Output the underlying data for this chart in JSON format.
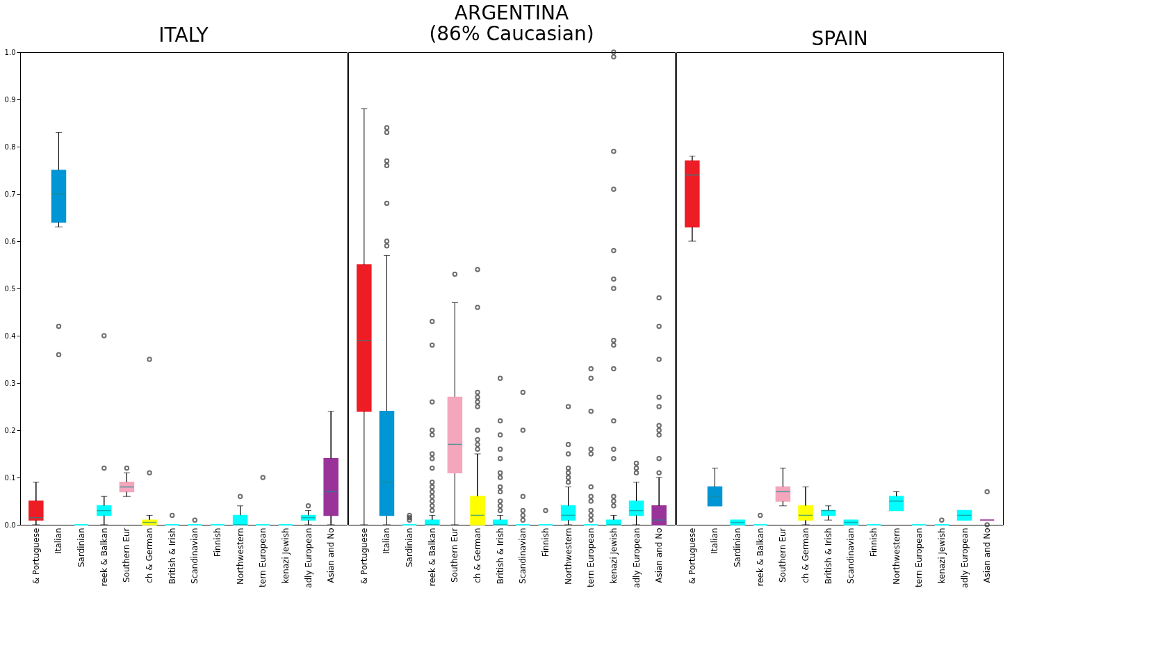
{
  "chart_data": [
    {
      "type": "box",
      "title": "ITALY",
      "categories": [
        "& Portuguese",
        "Italian",
        "Sardinian",
        "reek & Balkan",
        "Southern Eur",
        "ch & German",
        "British & Irish",
        "Scandinavian",
        "Finnish",
        "Northwestern",
        "tern European",
        "kenazi Jewish",
        "adly European",
        "Asian and No"
      ],
      "colors": [
        "#ee1c25",
        "#0096d6",
        "#00ffff",
        "#00ffff",
        "#f4a6bd",
        "#ffff00",
        "#00ffff",
        "#00ffff",
        "#00ffff",
        "#00ffff",
        "#00ffff",
        "#00ffff",
        "#00ffff",
        "#993399"
      ],
      "boxes": [
        {
          "low": 0,
          "q1": 0.01,
          "median": 0.015,
          "q3": 0.05,
          "high": 0.09
        },
        {
          "low": 0.63,
          "q1": 0.64,
          "median": 0.7,
          "q3": 0.75,
          "high": 0.83,
          "outliers": [
            0.42,
            0.36
          ]
        },
        {
          "low": 0,
          "q1": 0,
          "median": 0,
          "q3": 0,
          "high": 0
        },
        {
          "low": 0,
          "q1": 0.02,
          "median": 0.03,
          "q3": 0.04,
          "high": 0.06,
          "outliers": [
            0.12,
            0.4
          ]
        },
        {
          "low": 0.06,
          "q1": 0.07,
          "median": 0.08,
          "q3": 0.09,
          "high": 0.11,
          "outliers": [
            0.12
          ]
        },
        {
          "low": 0,
          "q1": 0,
          "median": 0.005,
          "q3": 0.01,
          "high": 0.02,
          "outliers": [
            0.11,
            0.35
          ]
        },
        {
          "low": 0,
          "q1": 0,
          "median": 0,
          "q3": 0,
          "high": 0,
          "outliers": [
            0.02
          ]
        },
        {
          "low": 0,
          "q1": 0,
          "median": 0,
          "q3": 0,
          "high": 0,
          "outliers": [
            0.01
          ]
        },
        {
          "low": 0,
          "q1": 0,
          "median": 0,
          "q3": 0,
          "high": 0
        },
        {
          "low": 0,
          "q1": 0,
          "median": 0,
          "q3": 0.02,
          "high": 0.04,
          "outliers": [
            0.06
          ]
        },
        {
          "low": 0,
          "q1": 0,
          "median": 0,
          "q3": 0,
          "high": 0,
          "outliers": [
            0.1
          ]
        },
        {
          "low": 0,
          "q1": 0,
          "median": 0,
          "q3": 0,
          "high": 0
        },
        {
          "low": 0,
          "q1": 0.01,
          "median": 0.015,
          "q3": 0.02,
          "high": 0.03,
          "outliers": [
            0.04
          ]
        },
        {
          "low": 0,
          "q1": 0.02,
          "median": 0.07,
          "q3": 0.14,
          "high": 0.24
        }
      ],
      "ylim": [
        0,
        1
      ],
      "yticks": [
        {
          "value": 0,
          "label": "0.0"
        },
        0.1,
        0.2,
        0.3,
        0.4,
        0.5,
        0.6,
        0.7,
        0.8,
        0.9,
        {
          "value": 1,
          "label": "1.0"
        }
      ],
      "grid": false
    },
    {
      "type": "box",
      "title": "ARGENTINA\n(86% Caucasian)",
      "categories": [
        "& Portuguese",
        "Italian",
        "Sardinian",
        "reek & Balkan",
        "Southern Eur",
        "ch & German",
        "British & Irish",
        "Scandinavian",
        "Finnish",
        "Northwestern",
        "tern European",
        "kenazi Jewish",
        "adly European",
        "Asian and No"
      ],
      "colors": [
        "#ee1c25",
        "#0096d6",
        "#00ffff",
        "#00ffff",
        "#f4a6bd",
        "#ffff00",
        "#00ffff",
        "#00ffff",
        "#00ffff",
        "#00ffff",
        "#00ffff",
        "#00ffff",
        "#00ffff",
        "#993399"
      ],
      "boxes": [
        {
          "low": 0,
          "q1": 0.24,
          "median": 0.39,
          "q3": 0.55,
          "high": 0.88
        },
        {
          "low": 0,
          "q1": 0.02,
          "median": 0.09,
          "q3": 0.24,
          "high": 0.57,
          "outliers": [
            0.59,
            0.6,
            0.68,
            0.76,
            0.77,
            0.83,
            0.84
          ]
        },
        {
          "low": 0,
          "q1": 0,
          "median": 0,
          "q3": 0,
          "high": 0,
          "outliers": [
            0.01,
            0.015,
            0.02
          ]
        },
        {
          "low": 0,
          "q1": 0,
          "median": 0,
          "q3": 0.01,
          "high": 0.02,
          "outliers": [
            0.03,
            0.04,
            0.05,
            0.06,
            0.07,
            0.08,
            0.09,
            0.12,
            0.14,
            0.15,
            0.19,
            0.2,
            0.26,
            0.38,
            0.43
          ]
        },
        {
          "low": 0,
          "q1": 0.11,
          "median": 0.17,
          "q3": 0.27,
          "high": 0.47,
          "outliers": [
            0.53
          ]
        },
        {
          "low": 0,
          "q1": 0,
          "median": 0.02,
          "q3": 0.06,
          "high": 0.15,
          "outliers": [
            0.16,
            0.17,
            0.18,
            0.2,
            0.25,
            0.26,
            0.27,
            0.28,
            0.46,
            0.54
          ]
        },
        {
          "low": 0,
          "q1": 0,
          "median": 0,
          "q3": 0.01,
          "high": 0.02,
          "outliers": [
            0.03,
            0.04,
            0.05,
            0.07,
            0.08,
            0.1,
            0.11,
            0.14,
            0.16,
            0.19,
            0.22,
            0.31
          ]
        },
        {
          "low": 0,
          "q1": 0,
          "median": 0,
          "q3": 0,
          "high": 0,
          "outliers": [
            0.01,
            0.02,
            0.03,
            0.06,
            0.2,
            0.28
          ]
        },
        {
          "low": 0,
          "q1": 0,
          "median": 0,
          "q3": 0,
          "high": 0,
          "outliers": [
            0.03
          ]
        },
        {
          "low": 0,
          "q1": 0.01,
          "median": 0.02,
          "q3": 0.04,
          "high": 0.08,
          "outliers": [
            0.09,
            0.1,
            0.11,
            0.12,
            0.15,
            0.17,
            0.25
          ]
        },
        {
          "low": 0,
          "q1": 0,
          "median": 0,
          "q3": 0,
          "high": 0,
          "outliers": [
            0.01,
            0.02,
            0.03,
            0.05,
            0.06,
            0.08,
            0.15,
            0.16,
            0.24,
            0.31,
            0.33
          ]
        },
        {
          "low": 0,
          "q1": 0,
          "median": 0,
          "q3": 0.01,
          "high": 0.02,
          "outliers": [
            0.04,
            0.05,
            0.06,
            0.14,
            0.16,
            0.22,
            0.33,
            0.38,
            0.39,
            0.5,
            0.52,
            0.58,
            0.71,
            0.79,
            0.99,
            1.0
          ]
        },
        {
          "low": 0,
          "q1": 0.02,
          "median": 0.03,
          "q3": 0.05,
          "high": 0.09,
          "outliers": [
            0.11,
            0.12,
            0.13
          ]
        },
        {
          "low": 0,
          "q1": 0,
          "median": 0.01,
          "q3": 0.04,
          "high": 0.1,
          "outliers": [
            0.11,
            0.14,
            0.19,
            0.2,
            0.21,
            0.25,
            0.27,
            0.35,
            0.42,
            0.48
          ]
        }
      ],
      "ylim": [
        0,
        1
      ],
      "tick_labels": "x",
      "grid": false
    },
    {
      "type": "box",
      "title": "SPAIN",
      "categories": [
        "& Portuguese",
        "Italian",
        "Sardinian",
        "reek & Balkan",
        "Southern Eur",
        "ch & German",
        "British & Irish",
        "Scandinavian",
        "Finnish",
        "Northwestern",
        "tern European",
        "kenazi Jewish",
        "adly European",
        "Asian and No"
      ],
      "colors": [
        "#ee1c25",
        "#0096d6",
        "#00ffff",
        "#00ffff",
        "#f4a6bd",
        "#ffff00",
        "#00ffff",
        "#00ffff",
        "#00ffff",
        "#00ffff",
        "#00ffff",
        "#00ffff",
        "#00ffff",
        "#993399"
      ],
      "boxes": [
        {
          "low": 0.6,
          "q1": 0.63,
          "median": 0.74,
          "q3": 0.77,
          "high": 0.78
        },
        {
          "low": 0.04,
          "q1": 0.04,
          "median": 0.06,
          "q3": 0.08,
          "high": 0.12
        },
        {
          "low": 0,
          "q1": 0,
          "median": 0.005,
          "q3": 0.01,
          "high": 0.01
        },
        {
          "low": 0,
          "q1": 0,
          "median": 0,
          "q3": 0,
          "high": 0,
          "outliers": [
            0.02
          ]
        },
        {
          "low": 0.04,
          "q1": 0.05,
          "median": 0.07,
          "q3": 0.08,
          "high": 0.12
        },
        {
          "low": 0,
          "q1": 0.01,
          "median": 0.02,
          "q3": 0.04,
          "high": 0.08
        },
        {
          "low": 0.01,
          "q1": 0.02,
          "median": 0.03,
          "q3": 0.03,
          "high": 0.04
        },
        {
          "low": 0,
          "q1": 0,
          "median": 0.005,
          "q3": 0.01,
          "high": 0.01
        },
        {
          "low": 0,
          "q1": 0,
          "median": 0,
          "q3": 0,
          "high": 0
        },
        {
          "low": 0.03,
          "q1": 0.03,
          "median": 0.05,
          "q3": 0.06,
          "high": 0.07
        },
        {
          "low": 0,
          "q1": 0,
          "median": 0,
          "q3": 0,
          "high": 0
        },
        {
          "low": 0,
          "q1": 0,
          "median": 0,
          "q3": 0,
          "high": 0,
          "outliers": [
            0.01
          ]
        },
        {
          "low": 0.01,
          "q1": 0.01,
          "median": 0.02,
          "q3": 0.03,
          "high": 0.03
        },
        {
          "low": 0.01,
          "q1": 0.01,
          "median": 0.01,
          "q3": 0.01,
          "high": 0.01,
          "outliers": [
            0,
            0.07
          ]
        }
      ],
      "ylim": [
        0,
        1
      ],
      "tick_labels": "x",
      "grid": false
    }
  ]
}
